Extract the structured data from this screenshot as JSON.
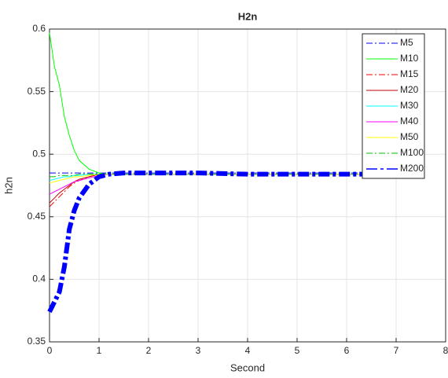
{
  "chart_data": {
    "type": "line",
    "title": "H2n",
    "xlabel": "Second",
    "ylabel": "h2n",
    "x": [
      0,
      0.1,
      0.2,
      0.3,
      0.4,
      0.5,
      0.6,
      0.8,
      1,
      1.2,
      1.5,
      2,
      3,
      4,
      5,
      6,
      7,
      7.5
    ],
    "series": [
      {
        "name": "M5",
        "color": "#0000ff",
        "linestyle": "dashdot",
        "values": [
          0.485,
          0.485,
          0.485,
          0.485,
          0.485,
          0.485,
          0.485,
          0.485,
          0.485,
          0.485,
          0.485,
          0.485,
          0.485,
          0.485,
          0.485,
          0.485,
          0.485,
          0.485
        ]
      },
      {
        "name": "M10",
        "color": "#00ff00",
        "linestyle": "solid",
        "values": [
          0.597,
          0.57,
          0.555,
          0.53,
          0.515,
          0.503,
          0.495,
          0.488,
          0.485,
          0.484,
          0.484,
          0.484,
          0.484,
          0.484,
          0.484,
          0.484,
          0.484,
          0.484
        ]
      },
      {
        "name": "M15",
        "color": "#ff0000",
        "linestyle": "dashdot",
        "values": [
          0.458,
          0.462,
          0.466,
          0.47,
          0.474,
          0.477,
          0.479,
          0.482,
          0.484,
          0.484,
          0.484,
          0.484,
          0.484,
          0.484,
          0.484,
          0.484,
          0.484,
          0.484
        ]
      },
      {
        "name": "M20",
        "color": "#c00000",
        "linestyle": "solid",
        "values": [
          0.461,
          0.465,
          0.469,
          0.472,
          0.475,
          0.478,
          0.48,
          0.482,
          0.484,
          0.484,
          0.484,
          0.484,
          0.484,
          0.484,
          0.484,
          0.484,
          0.484,
          0.484
        ]
      },
      {
        "name": "M30",
        "color": "#00ffff",
        "linestyle": "solid",
        "values": [
          0.479,
          0.48,
          0.481,
          0.482,
          0.482,
          0.483,
          0.483,
          0.484,
          0.484,
          0.484,
          0.484,
          0.484,
          0.484,
          0.484,
          0.484,
          0.484,
          0.484,
          0.484
        ]
      },
      {
        "name": "M40",
        "color": "#ff00ff",
        "linestyle": "solid",
        "values": [
          0.468,
          0.47,
          0.472,
          0.474,
          0.476,
          0.478,
          0.479,
          0.481,
          0.483,
          0.484,
          0.484,
          0.484,
          0.484,
          0.484,
          0.484,
          0.484,
          0.484,
          0.484
        ]
      },
      {
        "name": "M50",
        "color": "#ffff00",
        "linestyle": "solid",
        "values": [
          0.477,
          0.478,
          0.479,
          0.48,
          0.481,
          0.482,
          0.482,
          0.483,
          0.484,
          0.484,
          0.484,
          0.484,
          0.484,
          0.484,
          0.484,
          0.484,
          0.484,
          0.484
        ]
      },
      {
        "name": "M100",
        "color": "#00c000",
        "linestyle": "dashdot",
        "values": [
          0.482,
          0.482,
          0.483,
          0.483,
          0.483,
          0.483,
          0.484,
          0.484,
          0.484,
          0.484,
          0.484,
          0.484,
          0.484,
          0.484,
          0.484,
          0.484,
          0.484,
          0.484
        ]
      },
      {
        "name": "M200",
        "color": "#0000ff",
        "linestyle": "dashdot-thick",
        "values": [
          0.374,
          0.382,
          0.39,
          0.41,
          0.44,
          0.455,
          0.465,
          0.476,
          0.482,
          0.484,
          0.485,
          0.485,
          0.485,
          0.484,
          0.484,
          0.484,
          0.484,
          0.484
        ]
      }
    ],
    "xlim": [
      0,
      8
    ],
    "xticks": [
      0,
      1,
      2,
      3,
      4,
      5,
      6,
      7,
      8
    ],
    "ylim": [
      0.35,
      0.6
    ],
    "yticks": [
      0.35,
      0.4,
      0.45,
      0.5,
      0.55,
      0.6
    ],
    "grid": true,
    "legend": "northeast"
  }
}
